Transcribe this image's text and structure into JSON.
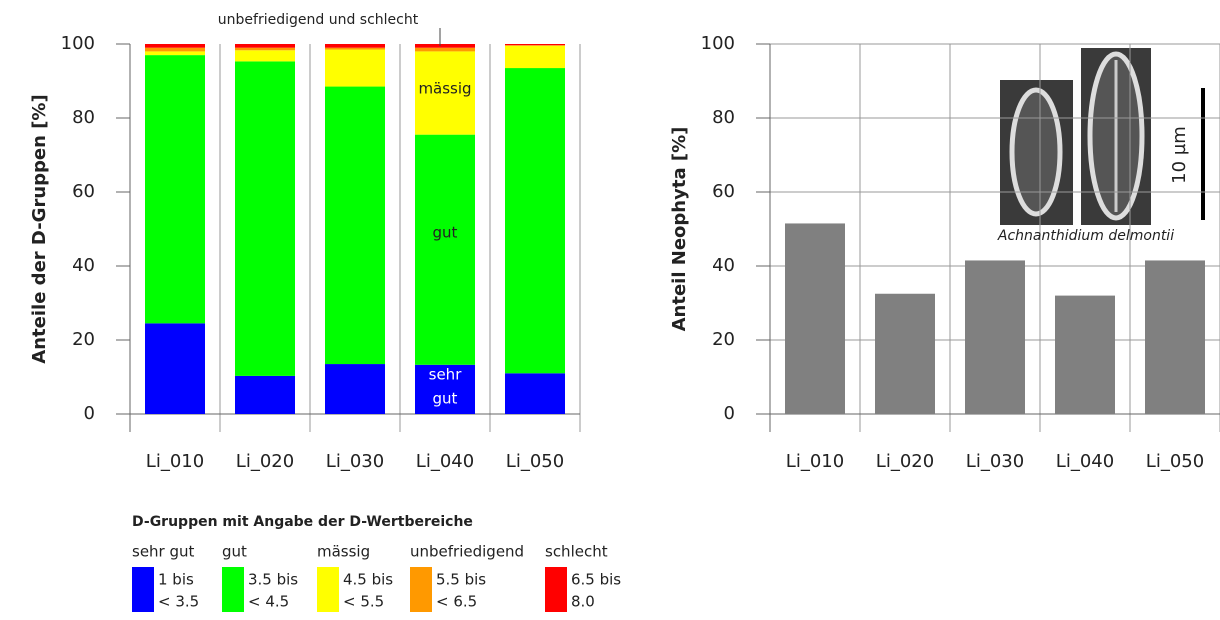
{
  "chart_data": [
    {
      "type": "stacked_bar",
      "ylabel": "Anteile der D-Gruppen [%]",
      "categories": [
        "Li_010",
        "Li_020",
        "Li_030",
        "Li_040",
        "Li_050"
      ],
      "ylim": [
        0,
        100
      ],
      "yticks": [
        0,
        20,
        40,
        60,
        80,
        100
      ],
      "series": [
        {
          "name": "sehr gut",
          "color": "#0000ff",
          "range": [
            "1 bis",
            "< 3.5"
          ],
          "values": [
            24.5,
            10.3,
            13.5,
            13.3,
            11
          ]
        },
        {
          "name": "gut",
          "color": "#00ff00",
          "range": [
            "3.5 bis",
            "< 4.5"
          ],
          "values": [
            72.5,
            85,
            75,
            62.2,
            82.5
          ]
        },
        {
          "name": "mässig",
          "color": "#ffff00",
          "range": [
            "4.5 bis",
            "< 5.5"
          ],
          "values": [
            1,
            3,
            10,
            22.5,
            6
          ]
        },
        {
          "name": "unbefriedigend",
          "color": "#ff9900",
          "range": [
            "5.5 bis",
            "< 6.5"
          ],
          "values": [
            1,
            0.7,
            0.5,
            1,
            0.2
          ]
        },
        {
          "name": "schlecht",
          "color": "#ff0000",
          "range": [
            "6.5 bis",
            "8.0"
          ],
          "values": [
            1,
            1,
            1,
            1,
            0.3
          ]
        }
      ],
      "legend_title": "D-Gruppen mit Angabe der D-Wertbereiche",
      "annotations": [
        "unbefriedigend und schlecht",
        "mässig",
        "gut",
        "sehr",
        "gut"
      ]
    },
    {
      "type": "bar",
      "ylabel": "Anteil Neophyta [%]",
      "categories": [
        "Li_010",
        "Li_020",
        "Li_030",
        "Li_040",
        "Li_050"
      ],
      "values": [
        51.5,
        32.5,
        41.5,
        32,
        41.5
      ],
      "color": "#808080",
      "ylim": [
        0,
        100
      ],
      "yticks": [
        0,
        20,
        40,
        60,
        80,
        100
      ],
      "grid": true,
      "image_caption": "Achnanthidium delmontii",
      "scale_label": "10 µm"
    }
  ]
}
